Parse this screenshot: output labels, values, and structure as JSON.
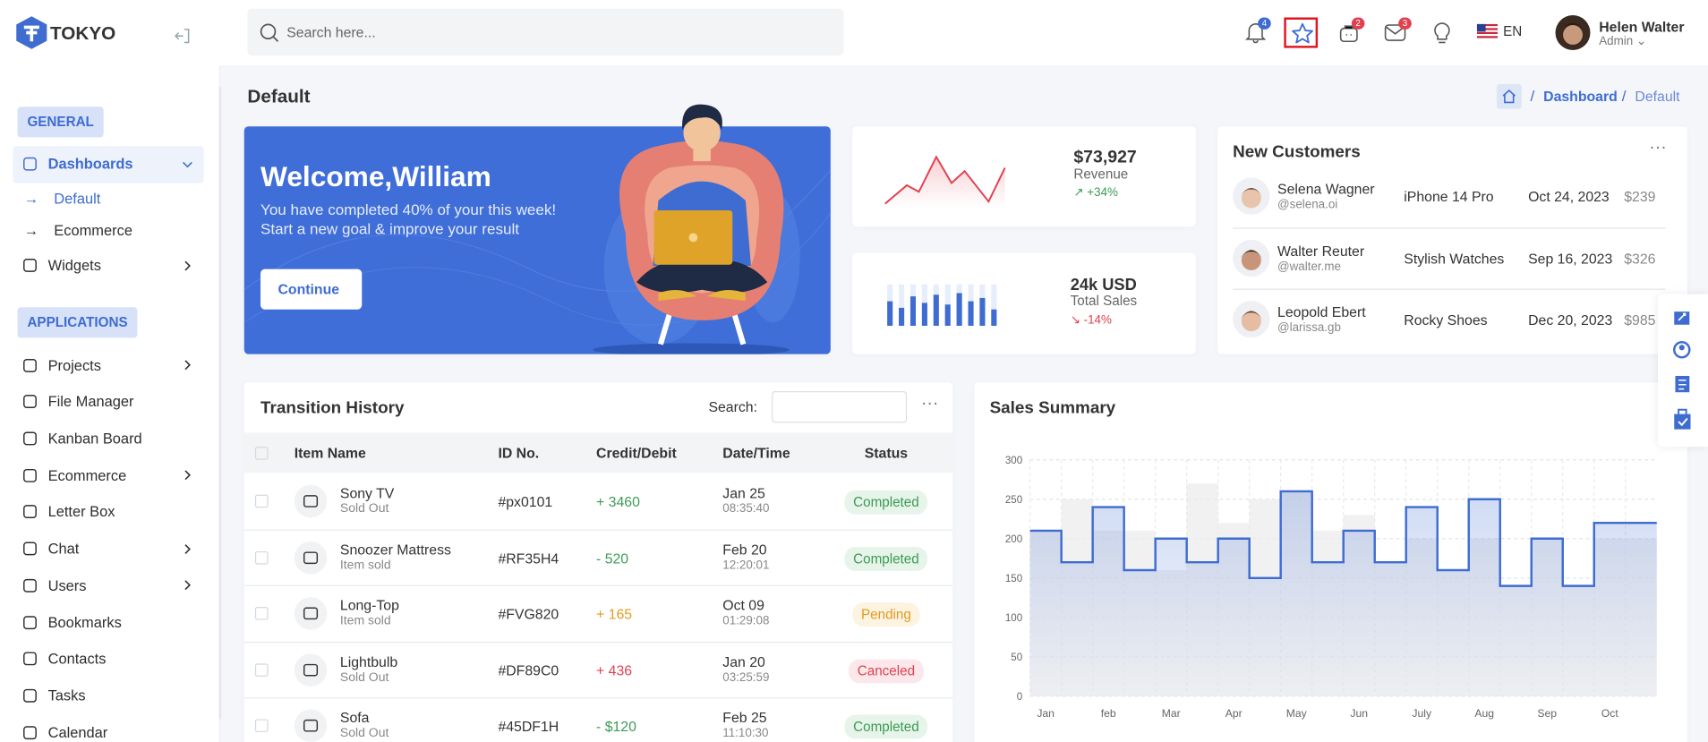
{
  "brand": "TOKYO",
  "header": {
    "search_placeholder": "Search here...",
    "notification_count": 4,
    "cart_count": 2,
    "message_count": 3,
    "language": "EN",
    "user": {
      "name": "Helen Walter",
      "role": "Admin"
    }
  },
  "sidebar": {
    "sections": [
      {
        "title": "GENERAL",
        "items": [
          {
            "label": "Dashboards",
            "expandable": true,
            "active": true,
            "children": [
              {
                "label": "Default",
                "active": true
              },
              {
                "label": "Ecommerce"
              }
            ]
          },
          {
            "label": "Widgets",
            "expandable": true
          }
        ]
      },
      {
        "title": "APPLICATIONS",
        "items": [
          {
            "label": "Projects",
            "expandable": true
          },
          {
            "label": "File Manager"
          },
          {
            "label": "Kanban Board"
          },
          {
            "label": "Ecommerce",
            "expandable": true
          },
          {
            "label": "Letter Box"
          },
          {
            "label": "Chat",
            "expandable": true
          },
          {
            "label": "Users",
            "expandable": true
          },
          {
            "label": "Bookmarks"
          },
          {
            "label": "Contacts"
          },
          {
            "label": "Tasks"
          },
          {
            "label": "Calendar"
          }
        ]
      }
    ]
  },
  "page_title": "Default",
  "breadcrumb": [
    "Dashboard",
    "Default"
  ],
  "welcome": {
    "title": "Welcome,William",
    "lines": [
      "You have completed 40% of your this week!",
      "Start a new goal & improve your result"
    ],
    "button": "Continue"
  },
  "stats": [
    {
      "value": "$73,927",
      "label": "Revenue",
      "change": "+34%"
    },
    {
      "value": "24k USD",
      "label": "Total Sales",
      "change": "-14%"
    }
  ],
  "new_customers": {
    "title": "New Customers",
    "rows": [
      {
        "name": "Selena Wagner",
        "handle": "@selena.oi",
        "product": "iPhone 14 Pro",
        "date": "Oct 24, 2023",
        "amount": "$239"
      },
      {
        "name": "Walter Reuter",
        "handle": "@walter.me",
        "product": "Stylish Watches",
        "date": "Sep 16, 2023",
        "amount": "$326"
      },
      {
        "name": "Leopold Ebert",
        "handle": "@larissa.gb",
        "product": "Rocky Shoes",
        "date": "Dec 20, 2023",
        "amount": "$985"
      }
    ]
  },
  "transactions": {
    "title": "Transition History",
    "search_label": "Search:",
    "columns": [
      "Item Name",
      "ID No.",
      "Credit/Debit",
      "Date/Time",
      "Status"
    ],
    "rows": [
      {
        "name": "Sony TV",
        "sub": "Sold Out",
        "id": "#px0101",
        "amount": "+ 3460",
        "date": "Jan 25",
        "time": "08:35:40",
        "status": "Completed"
      },
      {
        "name": "Snoozer Mattress",
        "sub": "Item sold",
        "id": "#RF35H4",
        "amount": "- 520",
        "date": "Feb 20",
        "time": "12:20:01",
        "status": "Completed"
      },
      {
        "name": "Long-Top",
        "sub": "Item sold",
        "id": "#FVG820",
        "amount": "+ 165",
        "date": "Oct 09",
        "time": "01:29:08",
        "status": "Pending"
      },
      {
        "name": "Lightbulb",
        "sub": "Sold Out",
        "id": "#DF89C0",
        "amount": "+ 436",
        "date": "Jan 20",
        "time": "03:25:59",
        "status": "Canceled"
      },
      {
        "name": "Sofa",
        "sub": "Sold Out",
        "id": "#45DF1H",
        "amount": "- $120",
        "date": "Feb 25",
        "time": "11:10:30",
        "status": "Completed"
      }
    ]
  },
  "sales_summary": {
    "title": "Sales Summary",
    "chart_data": {
      "type": "line",
      "categories": [
        "Jan",
        null,
        "feb",
        null,
        "Mar",
        null,
        "Apr",
        null,
        "May",
        null,
        "Jun",
        null,
        "July",
        null,
        "Aug",
        null,
        "Sep",
        null,
        "Oct",
        null
      ],
      "ylim": [
        0,
        300
      ],
      "yticks": [
        0,
        50,
        100,
        150,
        200,
        250,
        300
      ],
      "grid": true,
      "series": [
        {
          "color": "#3e6cd1",
          "values": [
            210,
            170,
            240,
            160,
            200,
            170,
            200,
            150,
            260,
            170,
            210,
            170,
            240,
            160,
            250,
            140,
            200,
            140,
            220,
            220
          ]
        },
        {
          "color": "#ebebed",
          "values": [
            210,
            250,
            210,
            210,
            160,
            270,
            220,
            250,
            260,
            210,
            230,
            170,
            200,
            160,
            200,
            140,
            200,
            140,
            200,
            200
          ]
        }
      ]
    }
  }
}
